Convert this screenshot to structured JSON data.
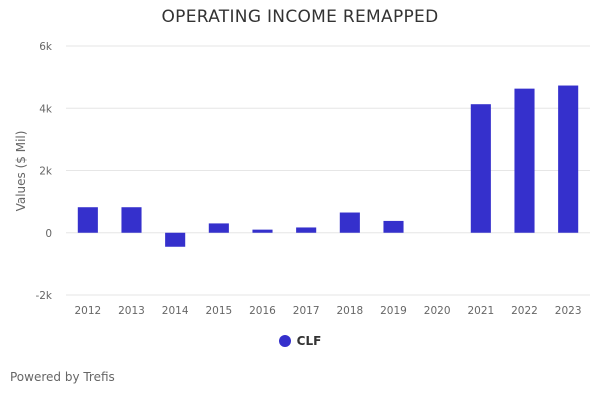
{
  "chart_data": {
    "type": "bar",
    "title": "OPERATING INCOME REMAPPED",
    "ylabel": "Values ($ Mil)",
    "xlabel": "",
    "categories": [
      "2012",
      "2013",
      "2014",
      "2015",
      "2016",
      "2017",
      "2018",
      "2019",
      "2020",
      "2021",
      "2022",
      "2023"
    ],
    "series": [
      {
        "name": "CLF",
        "values": [
          820,
          820,
          -450,
          300,
          100,
          170,
          650,
          380,
          null,
          4130,
          4630,
          4730
        ]
      }
    ],
    "ylim": [
      -2000,
      6000
    ],
    "yticks": [
      -2000,
      0,
      2000,
      4000,
      6000
    ],
    "ytick_labels": [
      "-2k",
      "0",
      "2k",
      "4k",
      "6k"
    ],
    "grid": true,
    "legend": "bottom-center"
  },
  "colors": {
    "series": "#3530cc",
    "grid": "#e6e6e6",
    "axis_text": "#666666"
  },
  "credits": "Powered by Trefis"
}
